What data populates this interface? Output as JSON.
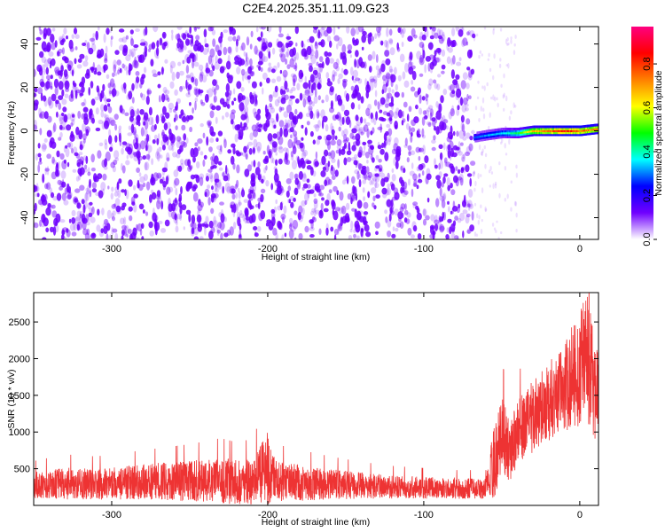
{
  "title": "C2E4.2025.351.11.09.G23",
  "chart_data": [
    {
      "type": "heatmap",
      "xlabel": "Height of straight line (km)",
      "ylabel": "Frequency (Hz)",
      "xlim": [
        -350,
        12
      ],
      "ylim": [
        -50,
        48
      ],
      "xticks": [
        -300,
        -200,
        -100,
        0
      ],
      "yticks": [
        -40,
        -20,
        0,
        20,
        40
      ],
      "colorbar": {
        "label": "Normalized spectral amplitude",
        "range": [
          0.0,
          0.97
        ],
        "ticks": [
          0.0,
          0.2,
          0.4,
          0.6,
          0.8
        ],
        "tick_labels": [
          "0.0",
          "0.2",
          "0.4",
          "0.6",
          "0.8"
        ],
        "colormap": [
          "#ffffff",
          "#7000ff",
          "#0000ff",
          "#00ffff",
          "#00ff00",
          "#ffff00",
          "#ff8000",
          "#ff0000",
          "#ff0080"
        ]
      },
      "regions": [
        {
          "x_range": [
            -350,
            -68
          ],
          "y_range": [
            -50,
            48
          ],
          "amplitude": 0.05,
          "description_level": "noise"
        },
        {
          "x_range": [
            -68,
            -40
          ],
          "y_range": [
            -50,
            48
          ],
          "amplitude": 0.02,
          "description_level": "sparse"
        },
        {
          "x_range": [
            -68,
            12
          ],
          "y_range": [
            -3,
            3
          ],
          "amplitude": 0.85,
          "description_level": "signal"
        }
      ],
      "signal_track": {
        "x": [
          -68,
          -60,
          -50,
          -40,
          -30,
          -20,
          -10,
          0,
          12
        ],
        "y": [
          -3,
          -2,
          -1,
          -1,
          0,
          0,
          0,
          0,
          1
        ],
        "amplitude": [
          0.3,
          0.35,
          0.4,
          0.5,
          0.75,
          0.85,
          0.9,
          0.85,
          0.8
        ]
      }
    },
    {
      "type": "line",
      "xlabel": "Height of straight line (km)",
      "ylabel": "SNR (10 * v/v)",
      "xlim": [
        -350,
        12
      ],
      "ylim": [
        0,
        2900
      ],
      "xticks": [
        -300,
        -200,
        -100,
        0
      ],
      "yticks": [
        500,
        1000,
        1500,
        2000,
        2500
      ],
      "series": [
        {
          "color": "#ee3333",
          "x": [
            -350,
            -330,
            -310,
            -290,
            -270,
            -250,
            -230,
            -220,
            -210,
            -200,
            -195,
            -180,
            -160,
            -140,
            -120,
            -100,
            -80,
            -70,
            -60,
            -55,
            -50,
            -45,
            -40,
            -30,
            -20,
            -10,
            -5,
            0,
            5,
            10,
            12
          ],
          "y": [
            280,
            300,
            290,
            310,
            330,
            330,
            340,
            320,
            330,
            500,
            330,
            310,
            290,
            270,
            250,
            240,
            230,
            230,
            230,
            600,
            950,
            750,
            1000,
            1200,
            1400,
            1600,
            1750,
            1850,
            2000,
            1600,
            1500
          ],
          "y_spread": [
            180,
            220,
            210,
            230,
            250,
            280,
            320,
            300,
            320,
            500,
            280,
            250,
            210,
            180,
            160,
            150,
            140,
            140,
            140,
            500,
            550,
            450,
            450,
            500,
            550,
            600,
            700,
            800,
            900,
            700,
            500
          ]
        }
      ]
    }
  ]
}
